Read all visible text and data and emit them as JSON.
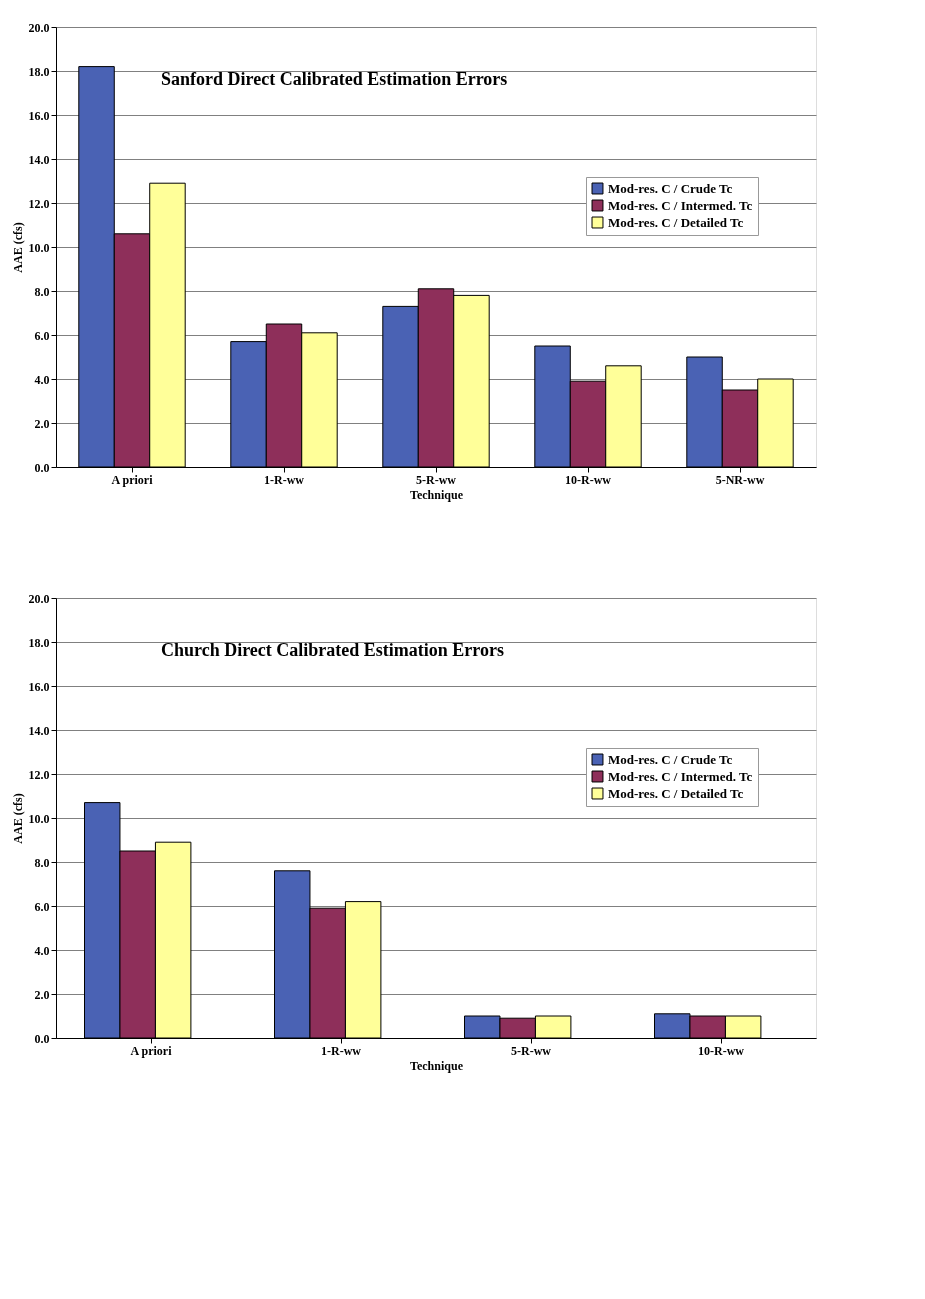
{
  "chart_data": [
    {
      "type": "bar",
      "title": "Sanford Direct Calibrated Estimation Errors",
      "xlabel": "Technique",
      "ylabel": "AAE (cfs)",
      "categories": [
        "A priori",
        "1-R-ww",
        "5-R-ww",
        "10-R-ww",
        "5-NR-ww"
      ],
      "series": [
        {
          "name": "Mod-res. C / Crude Tc",
          "color": "#4a62b4",
          "values": [
            18.2,
            5.7,
            7.3,
            5.5,
            5.0
          ]
        },
        {
          "name": "Mod-res. C / Intermed. Tc",
          "color": "#8e2f5a",
          "values": [
            10.6,
            6.5,
            8.1,
            3.9,
            3.5
          ]
        },
        {
          "name": "Mod-res. C / Detailed Tc",
          "color": "#ffff99",
          "values": [
            12.9,
            6.1,
            7.8,
            4.6,
            4.0
          ]
        }
      ],
      "ylim": [
        0,
        20
      ],
      "yticks": [
        {
          "value": 0,
          "label": "0.0"
        },
        {
          "value": 2,
          "label": "2.0"
        },
        {
          "value": 4,
          "label": "4.0"
        },
        {
          "value": 6,
          "label": "6.0"
        },
        {
          "value": 8,
          "label": "8.0"
        },
        {
          "value": 10,
          "label": "10.0"
        },
        {
          "value": 12,
          "label": "12.0"
        },
        {
          "value": 14,
          "label": "14.0"
        },
        {
          "value": 16,
          "label": "16.0"
        },
        {
          "value": 18,
          "label": "18.0"
        },
        {
          "value": 20,
          "label": "20.0"
        }
      ],
      "grid": "y",
      "legend": "right"
    },
    {
      "type": "bar",
      "title": "Church Direct Calibrated Estimation Errors",
      "xlabel": "Technique",
      "ylabel": "AAE (cfs)",
      "categories": [
        "A priori",
        "1-R-ww",
        "5-R-ww",
        "10-R-ww"
      ],
      "series": [
        {
          "name": "Mod-res. C / Crude Tc",
          "color": "#4a62b4",
          "values": [
            10.7,
            7.6,
            1.0,
            1.1
          ]
        },
        {
          "name": "Mod-res. C / Intermed. Tc",
          "color": "#8e2f5a",
          "values": [
            8.5,
            5.9,
            0.9,
            1.0
          ]
        },
        {
          "name": "Mod-res. C / Detailed Tc",
          "color": "#ffff99",
          "values": [
            8.9,
            6.2,
            1.0,
            1.0
          ]
        }
      ],
      "ylim": [
        0,
        20
      ],
      "yticks": [
        {
          "value": 0,
          "label": "0.0"
        },
        {
          "value": 2,
          "label": "2.0"
        },
        {
          "value": 4,
          "label": "4.0"
        },
        {
          "value": 6,
          "label": "6.0"
        },
        {
          "value": 8,
          "label": "8.0"
        },
        {
          "value": 10,
          "label": "10.0"
        },
        {
          "value": 12,
          "label": "12.0"
        },
        {
          "value": 14,
          "label": "14.0"
        },
        {
          "value": 16,
          "label": "16.0"
        },
        {
          "value": 18,
          "label": "18.0"
        },
        {
          "value": 20,
          "label": "20.0"
        }
      ],
      "grid": "y",
      "legend": "right"
    }
  ]
}
